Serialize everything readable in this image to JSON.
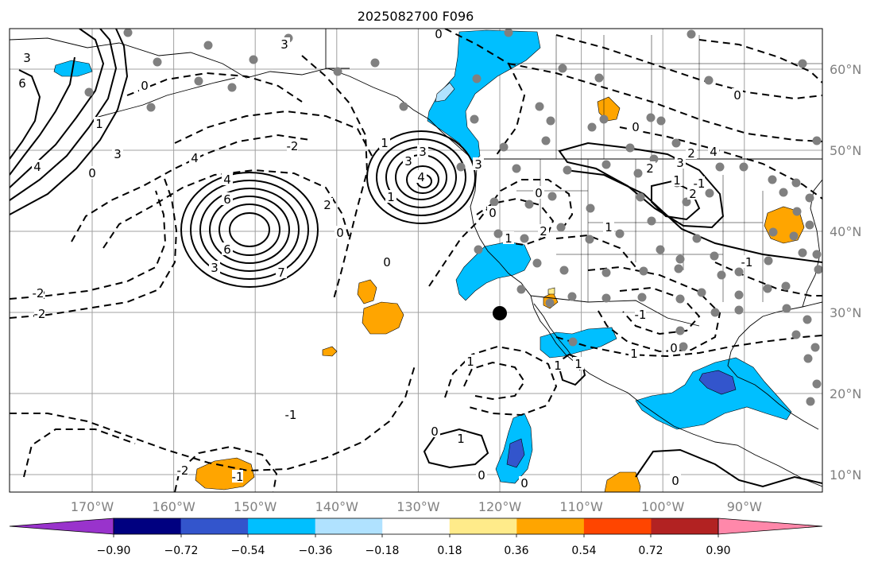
{
  "title": "2025082700 F096",
  "lon_ticks": [
    "170°W",
    "160°W",
    "150°W",
    "140°W",
    "130°W",
    "120°W",
    "110°W",
    "100°W",
    "90°W"
  ],
  "lat_ticks": [
    "60°N",
    "50°N",
    "40°N",
    "30°N",
    "20°N",
    "10°N"
  ],
  "colorbar": {
    "labels": [
      "−0.90",
      "−0.72",
      "−0.54",
      "−0.36",
      "−0.18",
      "0.18",
      "0.36",
      "0.54",
      "0.72",
      "0.90"
    ],
    "colors": [
      "#9933cc",
      "#000080",
      "#3355cc",
      "#00bfff",
      "#b0e2ff",
      "#ffffff",
      "#ffeb8a",
      "#ffa500",
      "#ff4500",
      "#b22222",
      "#ff88aa"
    ]
  },
  "contour_labels": [
    "3",
    "6",
    "0",
    "3",
    "1",
    "3",
    "4",
    "0",
    "6",
    "3",
    "7",
    "-2",
    "4",
    "-2",
    "2",
    "-2",
    "0",
    "4",
    "6",
    "3",
    "1",
    "1",
    "0",
    "3",
    "3",
    "4",
    "-2",
    "0",
    "1",
    "2",
    "-1",
    "0",
    "1",
    "0",
    "-1",
    "-2",
    "0",
    "1",
    "2",
    "-1",
    "0",
    "1",
    "2",
    "3",
    "4",
    "2",
    "1",
    "0",
    "1",
    "0",
    "0",
    "1",
    "-1",
    "-1",
    "0",
    "1",
    "0"
  ],
  "marker": {
    "lon": -120,
    "lat": 30
  }
}
